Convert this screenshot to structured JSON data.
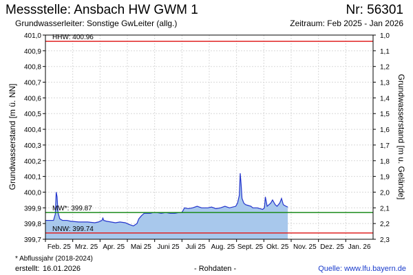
{
  "header": {
    "title": "Messstelle: Ansbach HW GWM 1",
    "station_number": "Nr: 56301",
    "aquifer": "Grundwasserleiter: Sonstige GwLeiter (allg.)",
    "period": "Zeitraum: Feb 2025 - Jan 2026"
  },
  "footer": {
    "footnote": "* Abflussjahr (2018-2024)",
    "created_label": "erstellt:",
    "created_date": "16.01.2026",
    "raw_data": "- Rohdaten -",
    "source_label": "Quelle:",
    "source_url": "www.lfu.bayern.de"
  },
  "chart_data": {
    "type": "area",
    "ylabel_left": "Grundwasserstand [m ü. NN]",
    "ylabel_right": "Grundwasserstand [m u. Gelände]",
    "ylim_left": [
      399.7,
      401.0
    ],
    "ylim_right": [
      1.0,
      2.3
    ],
    "yticks_left": [
      "401,0",
      "400,9",
      "400,8",
      "400,7",
      "400,6",
      "400,5",
      "400,4",
      "400,3",
      "400,2",
      "400,1",
      "400,0",
      "399,9",
      "399,8",
      "399,7"
    ],
    "yticks_right": [
      "1,0",
      "1,1",
      "1,2",
      "1,3",
      "1,4",
      "1,5",
      "1,6",
      "1,7",
      "1,8",
      "1,9",
      "2,0",
      "2,1",
      "2,2",
      "2,3"
    ],
    "xticks": [
      "Feb. 25",
      "Mrz. 25",
      "Apr. 25",
      "Mai 25",
      "Juni 25",
      "Juli 25",
      "Aug. 25",
      "Sept. 25",
      "Okt. 25",
      "Nov. 25",
      "Dez. 25",
      "Jan. 26"
    ],
    "reference_lines": [
      {
        "label": "HHW: 400.96",
        "value": 400.96,
        "color": "#e02020"
      },
      {
        "label": "MW*: 399.87",
        "value": 399.87,
        "color": "#1a8a1a"
      },
      {
        "label": "NNW: 399.74",
        "value": 399.74,
        "color": "#e02020"
      }
    ],
    "series": [
      {
        "line_color": "#2233cc",
        "fill_color": "#a8c8ec",
        "x": [
          "2025-02-01",
          "2025-02-07",
          "2025-02-10",
          "2025-02-12",
          "2025-02-13",
          "2025-02-14",
          "2025-02-15",
          "2025-02-17",
          "2025-02-20",
          "2025-02-25",
          "2025-03-01",
          "2025-03-10",
          "2025-03-20",
          "2025-03-28",
          "2025-04-01",
          "2025-04-05",
          "2025-04-06",
          "2025-04-07",
          "2025-04-10",
          "2025-04-15",
          "2025-04-20",
          "2025-04-25",
          "2025-05-01",
          "2025-05-05",
          "2025-05-10",
          "2025-05-14",
          "2025-05-16",
          "2025-05-19",
          "2025-05-22",
          "2025-05-26",
          "2025-05-29",
          "2025-06-01",
          "2025-06-05",
          "2025-06-10",
          "2025-06-15",
          "2025-06-20",
          "2025-06-25",
          "2025-06-30",
          "2025-07-03",
          "2025-07-06",
          "2025-07-10",
          "2025-07-15",
          "2025-07-20",
          "2025-07-25",
          "2025-08-01",
          "2025-08-05",
          "2025-08-10",
          "2025-08-15",
          "2025-08-20",
          "2025-08-25",
          "2025-09-01",
          "2025-09-03",
          "2025-09-05",
          "2025-09-06",
          "2025-09-07",
          "2025-09-08",
          "2025-09-10",
          "2025-09-12",
          "2025-09-15",
          "2025-09-18",
          "2025-09-20",
          "2025-09-25",
          "2025-10-01",
          "2025-10-03",
          "2025-10-04",
          "2025-10-06",
          "2025-10-10",
          "2025-10-12",
          "2025-10-15",
          "2025-10-17",
          "2025-10-20",
          "2025-10-22",
          "2025-10-24",
          "2025-10-27",
          "2025-10-29"
        ],
        "y": [
          399.82,
          399.82,
          399.82,
          399.86,
          400.0,
          399.97,
          399.87,
          399.83,
          399.82,
          399.82,
          399.815,
          399.81,
          399.81,
          399.805,
          399.81,
          399.82,
          399.835,
          399.82,
          399.815,
          399.81,
          399.805,
          399.81,
          399.805,
          399.795,
          399.785,
          399.8,
          399.83,
          399.85,
          399.865,
          399.865,
          399.865,
          399.87,
          399.87,
          399.865,
          399.87,
          399.865,
          399.865,
          399.87,
          399.87,
          399.9,
          399.895,
          399.9,
          399.91,
          399.9,
          399.9,
          399.905,
          399.895,
          399.9,
          399.91,
          399.9,
          399.91,
          399.93,
          399.98,
          400.12,
          400.05,
          399.96,
          399.93,
          399.92,
          399.915,
          399.91,
          399.9,
          399.9,
          399.89,
          399.9,
          399.97,
          399.91,
          399.93,
          399.95,
          399.92,
          399.91,
          399.93,
          399.96,
          399.92,
          399.91,
          399.905
        ]
      }
    ]
  }
}
